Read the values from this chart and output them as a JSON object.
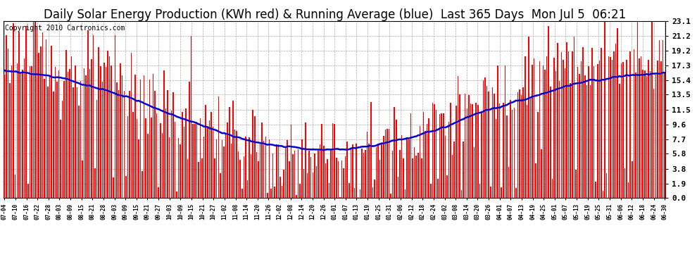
{
  "title": "Daily Solar Energy Production (KWh red) & Running Average (blue)  Last 365 Days  Mon Jul 5  06:21",
  "copyright": "Copyright 2010 Cartronics.com",
  "y_ticks": [
    0.0,
    1.9,
    3.8,
    5.8,
    7.7,
    9.6,
    11.5,
    13.5,
    15.4,
    17.3,
    19.2,
    21.2,
    23.1
  ],
  "ylim": [
    0.0,
    23.1
  ],
  "bar_color": "#FF0000",
  "line_color": "#0000CC",
  "background_color": "#FFFFFF",
  "grid_color": "#AAAAAA",
  "title_fontsize": 12,
  "copyright_fontsize": 7,
  "x_tick_fontsize": 5.5,
  "y_tick_fontsize": 8,
  "seed": 123,
  "x_tick_labels": [
    "07-04",
    "07-10",
    "07-16",
    "07-22",
    "07-28",
    "08-03",
    "08-09",
    "08-15",
    "08-21",
    "08-28",
    "09-03",
    "09-09",
    "09-15",
    "09-21",
    "09-27",
    "10-03",
    "10-09",
    "10-15",
    "10-21",
    "10-27",
    "11-02",
    "11-08",
    "11-14",
    "11-20",
    "11-26",
    "12-02",
    "12-08",
    "12-14",
    "12-20",
    "12-26",
    "01-01",
    "01-07",
    "01-13",
    "01-19",
    "01-25",
    "01-31",
    "02-06",
    "02-12",
    "02-18",
    "02-24",
    "03-02",
    "03-08",
    "03-14",
    "03-20",
    "03-26",
    "04-01",
    "04-07",
    "04-13",
    "04-19",
    "04-25",
    "05-01",
    "05-07",
    "05-13",
    "05-19",
    "05-25",
    "05-31",
    "06-06",
    "06-12",
    "06-18",
    "06-24",
    "06-30"
  ]
}
